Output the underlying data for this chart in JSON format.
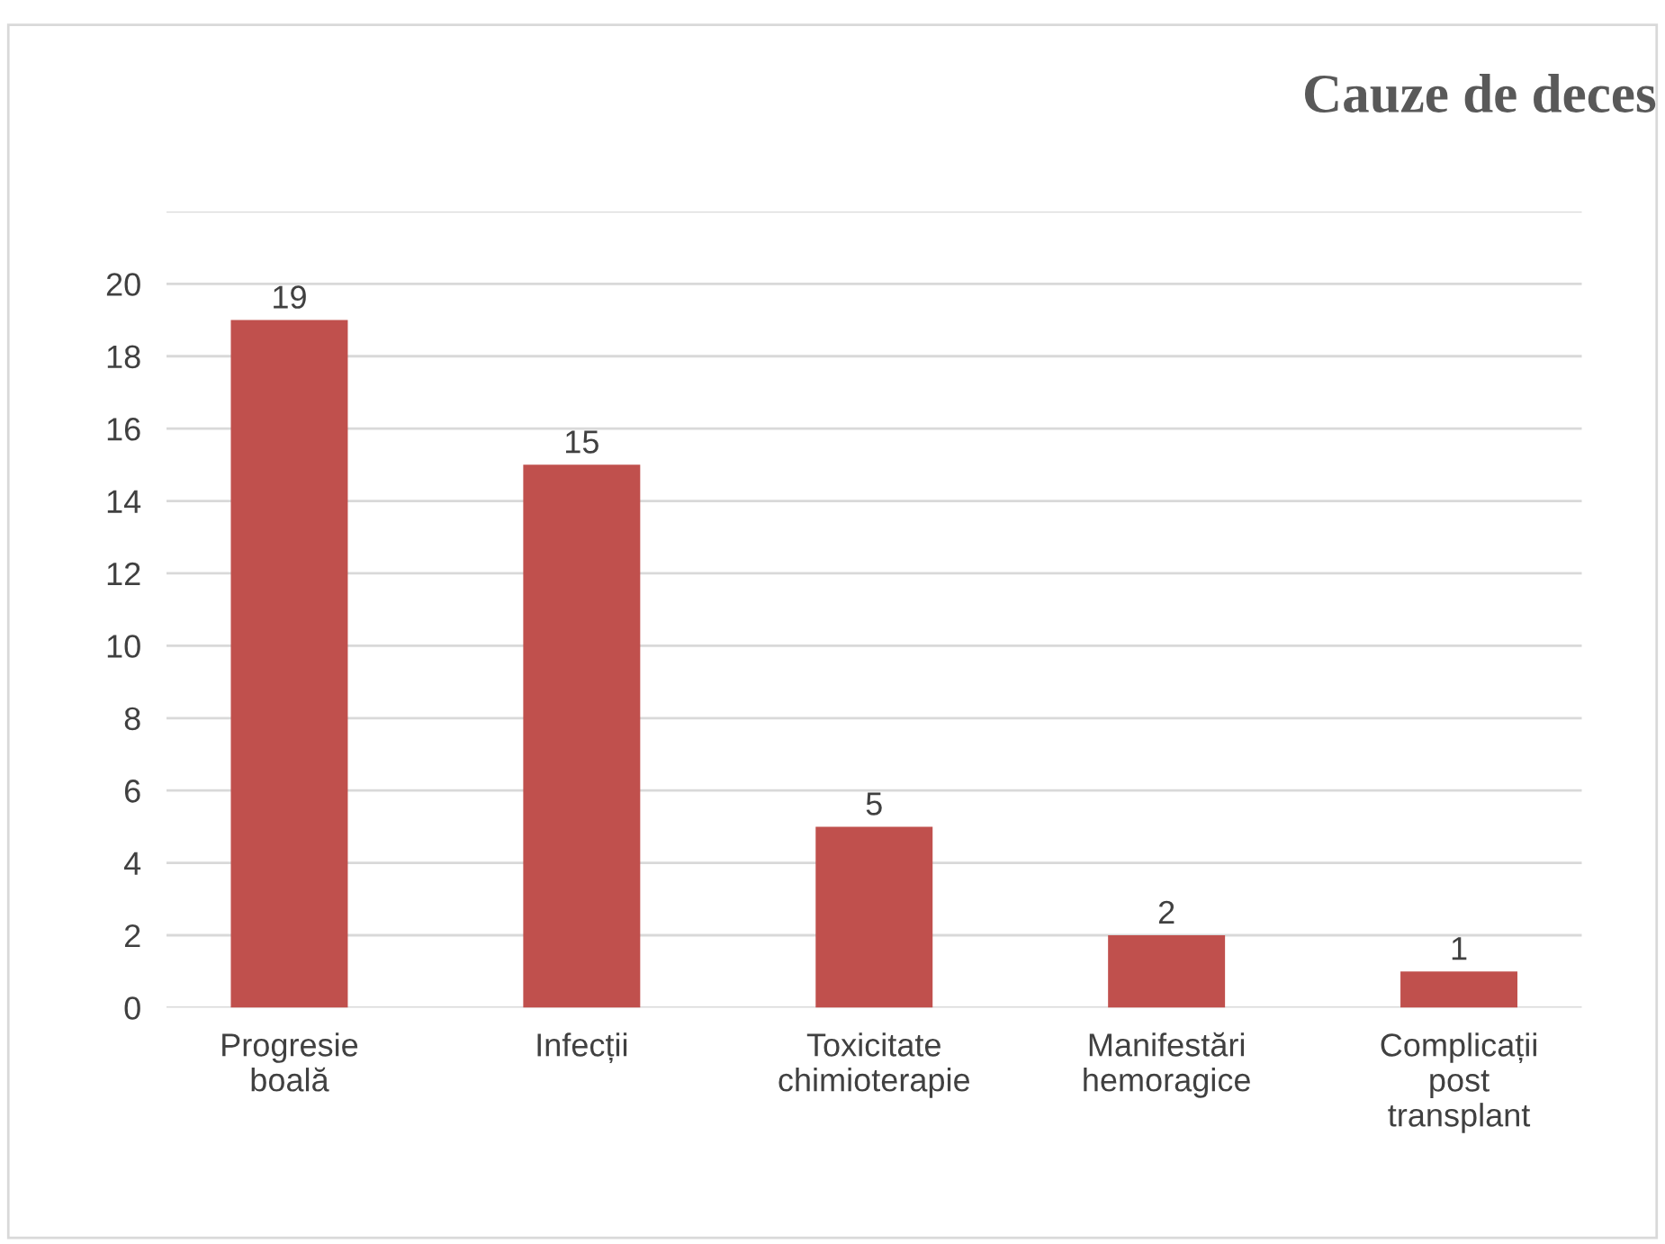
{
  "chart_data": {
    "type": "bar",
    "title": "Cauze de deces",
    "categories": [
      "Progresie\nboală",
      "Infecții",
      "Toxicitate\nchimioterapie",
      "Manifestări\nhemoragice",
      "Complicații\npost\ntransplant"
    ],
    "values": [
      19,
      15,
      5,
      2,
      1
    ],
    "color": "#c0504d",
    "ylim": [
      0,
      22
    ],
    "yticks": [
      0,
      2,
      4,
      6,
      8,
      10,
      12,
      14,
      16,
      18,
      20,
      {
        "value": 22,
        "label": null
      }
    ],
    "grid": "y",
    "data_labels": true
  }
}
